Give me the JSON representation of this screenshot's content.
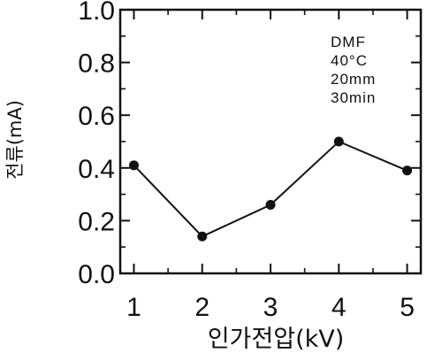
{
  "chart_data": {
    "type": "line",
    "xlabel": "인가전압(kV)",
    "ylabel": "전류(mA)",
    "x": [
      1,
      2,
      3,
      4,
      5
    ],
    "x_tick_labels": [
      "1",
      "2",
      "3",
      "4",
      "5"
    ],
    "y_tick_labels": [
      "0.0",
      "0.2",
      "0.4",
      "0.6",
      "0.8",
      "1.0"
    ],
    "xlim": [
      0.8,
      5.2
    ],
    "ylim": [
      0.0,
      1.0
    ],
    "series": [
      {
        "values": [
          0.41,
          0.14,
          0.26,
          0.5,
          0.39
        ]
      }
    ],
    "annotation_lines": [
      "DMF",
      "40°C",
      "20mm",
      "30min"
    ],
    "annotation_position": "top-right",
    "grid": false,
    "colors": {
      "line": "#111111",
      "marker": "#111111",
      "axis": "#111111"
    }
  }
}
